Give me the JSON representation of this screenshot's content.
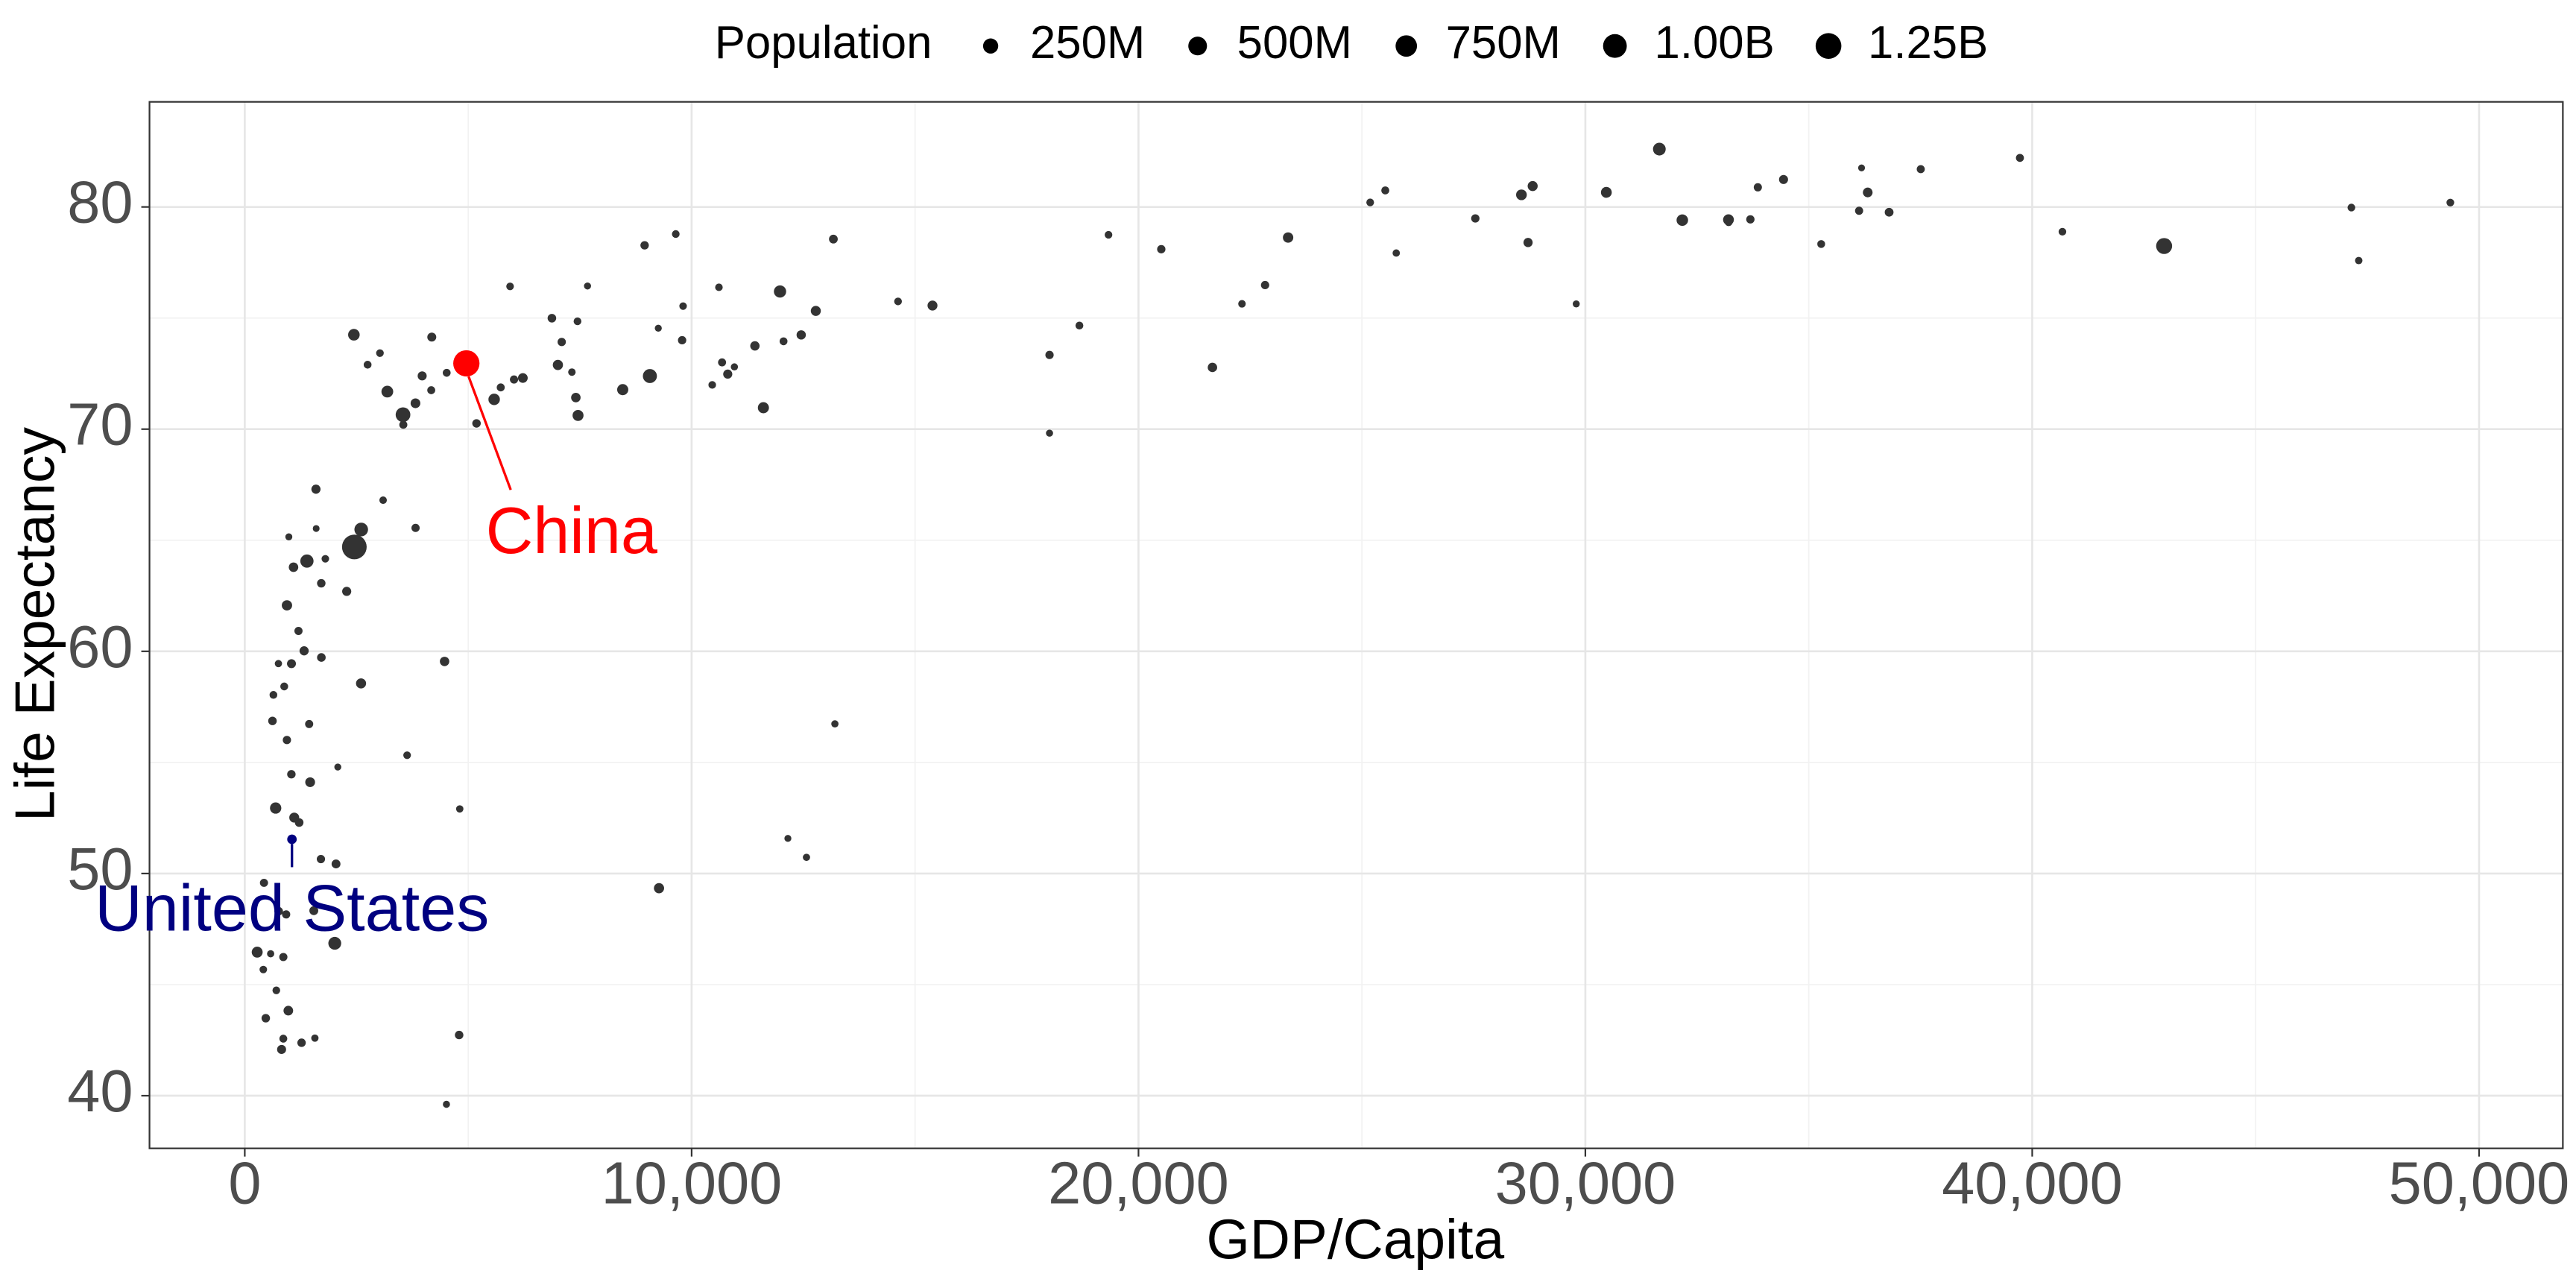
{
  "chart_data": {
    "type": "scatter",
    "x_label": "GDP/Capita",
    "y_label": "Life Expectancy",
    "size_title": "Population",
    "size_legend": [
      {
        "value": 250,
        "label": "250M"
      },
      {
        "value": 500,
        "label": "500M"
      },
      {
        "value": 750,
        "label": "750M"
      },
      {
        "value": 1000,
        "label": "1.00B"
      },
      {
        "value": 1250,
        "label": "1.25B"
      }
    ],
    "color": "#333333",
    "grid": true,
    "xlim": [
      -2132,
      51875
    ],
    "ylim": [
      37.63,
      84.73
    ],
    "xticks": [
      0,
      {
        "value": 10000,
        "label": "10,000"
      },
      {
        "value": 20000,
        "label": "20,000"
      },
      {
        "value": 30000,
        "label": "30,000"
      },
      {
        "value": 40000,
        "label": "40,000"
      },
      {
        "value": 50000,
        "label": "50,000"
      }
    ],
    "yticks": [
      40,
      50,
      60,
      70,
      80
    ],
    "xminorticks": [
      5000,
      15000,
      25000,
      35000,
      45000
    ],
    "yminorticks": [
      45,
      55,
      65,
      75
    ],
    "x": [
      974.6,
      5937,
      6223,
      4797,
      12779,
      34435,
      36126,
      29796,
      1391,
      33693,
      1441,
      3822,
      7446,
      12570,
      9066,
      10681,
      1217,
      430,
      1714,
      2042,
      36319,
      706,
      1704,
      13172,
      4959,
      7007,
      986,
      278,
      3633,
      9645,
      1545,
      14619,
      8948,
      22833,
      35278,
      2082,
      6025,
      6873,
      5581,
      5728,
      12154,
      641,
      691,
      33207,
      30470,
      13206,
      753,
      32170,
      1328,
      27538,
      5186,
      943,
      579,
      1202,
      3548,
      39725,
      18009,
      36181,
      2452,
      3541,
      11606,
      4471,
      40676,
      25523,
      28570,
      7321,
      31656,
      4519,
      1463,
      1593,
      23348,
      47307,
      10461,
      1569,
      415,
      12057,
      1045,
      759,
      12452,
      1043,
      1803,
      10957,
      11978,
      3096,
      9254,
      3820,
      824,
      944,
      4811,
      1091,
      36798,
      25185,
      2749,
      620,
      2014,
      49357,
      22316,
      2606,
      9809,
      4173,
      7409,
      3190,
      15390,
      20510,
      19329,
      7670,
      10808,
      863,
      1598,
      21655,
      1712,
      9787,
      863,
      47143,
      18678,
      25768,
      926,
      9270,
      28821,
      3970,
      2602,
      4513,
      33860,
      37506,
      4185,
      28718,
      1107,
      7458,
      883,
      18009,
      7093,
      8458,
      1056,
      33203,
      42952,
      10611,
      11416,
      2442,
      3025,
      2281,
      1271,
      470
    ],
    "y": [
      43.828,
      76.423,
      72.301,
      42.731,
      75.32,
      81.235,
      79.829,
      75.635,
      64.062,
      79.441,
      56.728,
      65.554,
      74.852,
      50.728,
      72.39,
      73.005,
      52.295,
      49.58,
      59.723,
      50.43,
      80.653,
      44.741,
      50.651,
      78.553,
      72.961,
      72.889,
      65.152,
      46.462,
      55.322,
      78.782,
      48.328,
      75.748,
      78.273,
      76.486,
      78.332,
      54.791,
      72.235,
      74.994,
      71.338,
      71.878,
      51.579,
      58.04,
      52.947,
      79.313,
      80.657,
      56.735,
      59.448,
      79.406,
      60.022,
      79.483,
      70.259,
      56.007,
      46.388,
      60.916,
      70.198,
      82.208,
      73.338,
      81.757,
      64.698,
      70.65,
      70.964,
      59.545,
      78.885,
      80.745,
      80.546,
      72.567,
      82.603,
      72.535,
      54.11,
      67.297,
      78.623,
      77.588,
      71.993,
      42.592,
      45.678,
      73.952,
      59.443,
      48.303,
      74.241,
      54.467,
      64.164,
      72.801,
      76.195,
      66.803,
      74.543,
      71.164,
      42.082,
      62.069,
      52.906,
      63.785,
      79.762,
      80.204,
      72.899,
      56.867,
      46.859,
      80.196,
      75.64,
      65.483,
      75.537,
      71.752,
      71.421,
      71.688,
      75.563,
      78.098,
      78.746,
      76.442,
      72.476,
      46.242,
      65.528,
      72.777,
      63.062,
      74.002,
      42.568,
      79.972,
      74.663,
      77.926,
      48.159,
      49.339,
      80.941,
      72.396,
      58.556,
      39.613,
      80.884,
      81.701,
      74.143,
      78.4,
      52.517,
      70.616,
      58.42,
      69.819,
      73.923,
      71.777,
      51.542,
      79.425,
      78.242,
      76.384,
      73.747,
      74.249,
      73.422,
      62.698,
      42.384,
      43.487
    ],
    "size": [
      31.9,
      3.6,
      33.3,
      12.4,
      40.3,
      20.4,
      8.2,
      0.7,
      150.4,
      10.4,
      8.1,
      9.1,
      4.6,
      1.6,
      190,
      7.3,
      14.3,
      8.4,
      14.1,
      17.7,
      33.4,
      4.4,
      10.2,
      16.3,
      1318.7,
      44.2,
      0.7,
      64.6,
      3.8,
      4.1,
      18,
      4.5,
      11.4,
      10.2,
      5.5,
      0.5,
      9.3,
      13.8,
      80.3,
      6.9,
      0.55,
      4.9,
      76.5,
      5.2,
      61.1,
      1.5,
      1.7,
      82.4,
      22.9,
      10.7,
      12.6,
      9.9,
      1.5,
      8.5,
      7.5,
      6.98,
      9.96,
      0.3,
      1110.4,
      223.5,
      69.5,
      27.5,
      4.1,
      6.4,
      58.1,
      2.8,
      127.5,
      6.05,
      35.6,
      23.3,
      49,
      2.5,
      3.9,
      2,
      3.2,
      6,
      19.2,
      13.3,
      24.8,
      12,
      3.3,
      1.25,
      108.7,
      2.9,
      0.68,
      33.8,
      20,
      47.8,
      2.05,
      28.9,
      16.6,
      4.1,
      5.7,
      12.9,
      135,
      4.6,
      3.2,
      169.3,
      3.2,
      6.7,
      28.7,
      91.1,
      38.5,
      10.6,
      3.9,
      0.8,
      22.3,
      8.9,
      0.2,
      27.6,
      12.3,
      10.2,
      6.1,
      4.55,
      5.4,
      2,
      9.1,
      44,
      40.4,
      20.4,
      42.3,
      1.1,
      9,
      7.55,
      19.3,
      23.2,
      38.1,
      65.1,
      5.7,
      1.06,
      10.3,
      71.2,
      29.2,
      60.8,
      301.1,
      3.4,
      26.1,
      85.3,
      4,
      22.2,
      11.7,
      12.3
    ],
    "annotations": [
      {
        "text": "China",
        "point": 24,
        "color": "#ff0000"
      },
      {
        "text": "United States",
        "point": 132,
        "color": "#000080"
      }
    ]
  }
}
